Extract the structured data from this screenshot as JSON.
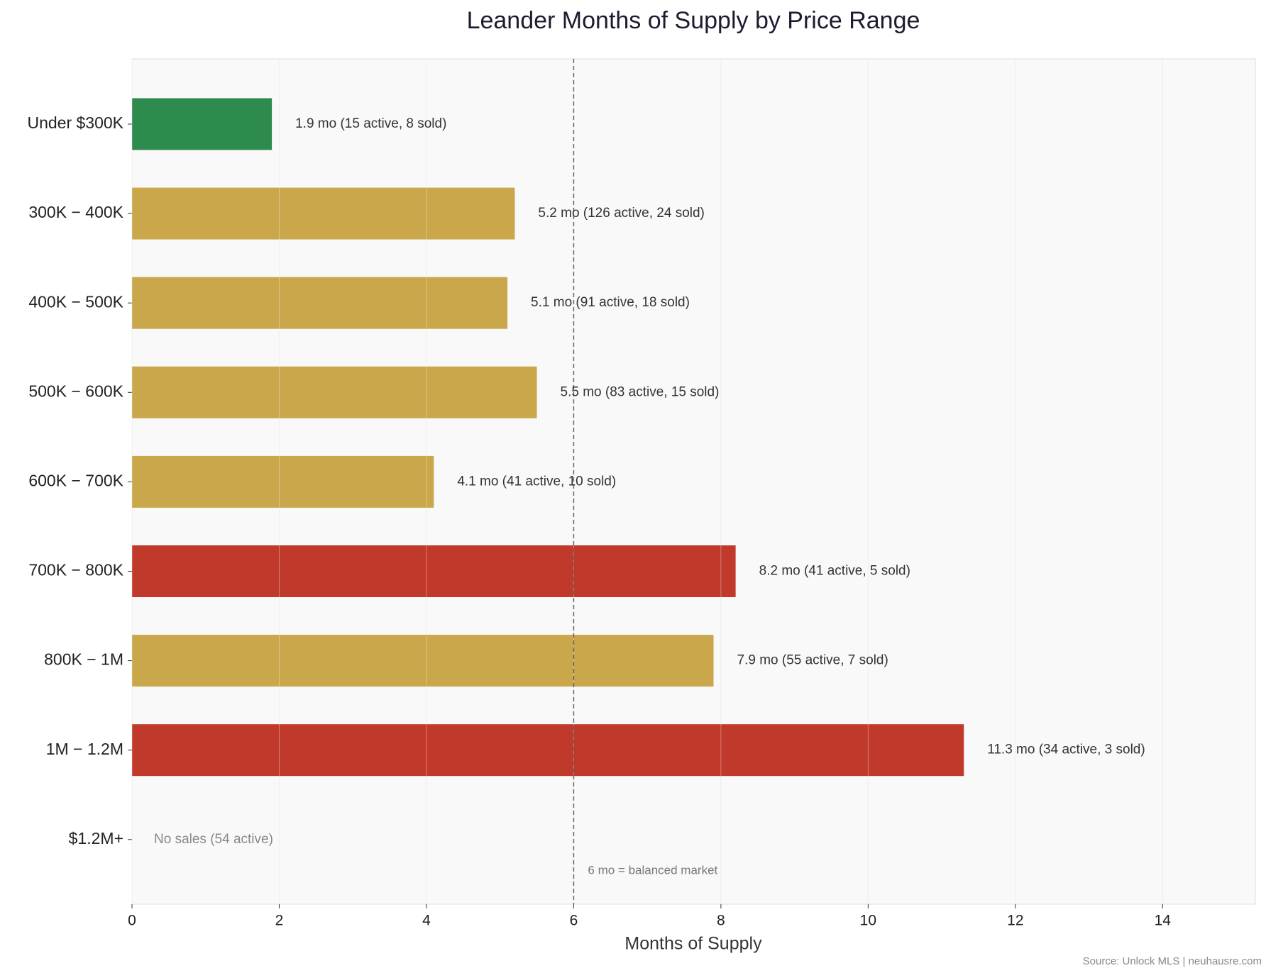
{
  "chart_data": {
    "type": "bar",
    "orientation": "horizontal",
    "title": "Leander Months of Supply by Price Range",
    "x_label": "Months of Supply",
    "source": "Source: Unlock MLS | neuhausre.com",
    "categories": [
      "Under $300K",
      "300K − 400K",
      "400K − 500K",
      "500K − 600K",
      "600K − 700K",
      "700K − 800K",
      "800K − 1M",
      "1M − 1.2M",
      "$1.2M+"
    ],
    "values": [
      1.9,
      5.2,
      5.1,
      5.5,
      4.1,
      8.2,
      7.9,
      11.3,
      null
    ],
    "value_labels": [
      "1.9 mo  (15 active, 8 sold)",
      "5.2 mo  (126 active, 24 sold)",
      "5.1 mo  (91 active, 18 sold)",
      "5.5 mo  (83 active, 15 sold)",
      "4.1 mo  (41 active, 10 sold)",
      "8.2 mo  (41 active, 5 sold)",
      "7.9 mo  (55 active, 7 sold)",
      "11.3 mo  (34 active, 3 sold)",
      "No sales  (54 active)"
    ],
    "colors": [
      "#2e8b4e",
      "#c9a74a",
      "#c9a74a",
      "#c9a74a",
      "#c9a74a",
      "#c0392b",
      "#c9a74a",
      "#c0392b",
      "#c9a74a"
    ],
    "xlim": [
      0,
      15.26
    ],
    "xticks": [
      0,
      2,
      4,
      6,
      8,
      10,
      12,
      14
    ],
    "grid": true,
    "reference_line": {
      "value": 6,
      "label": "6 mo = balanced market"
    }
  }
}
